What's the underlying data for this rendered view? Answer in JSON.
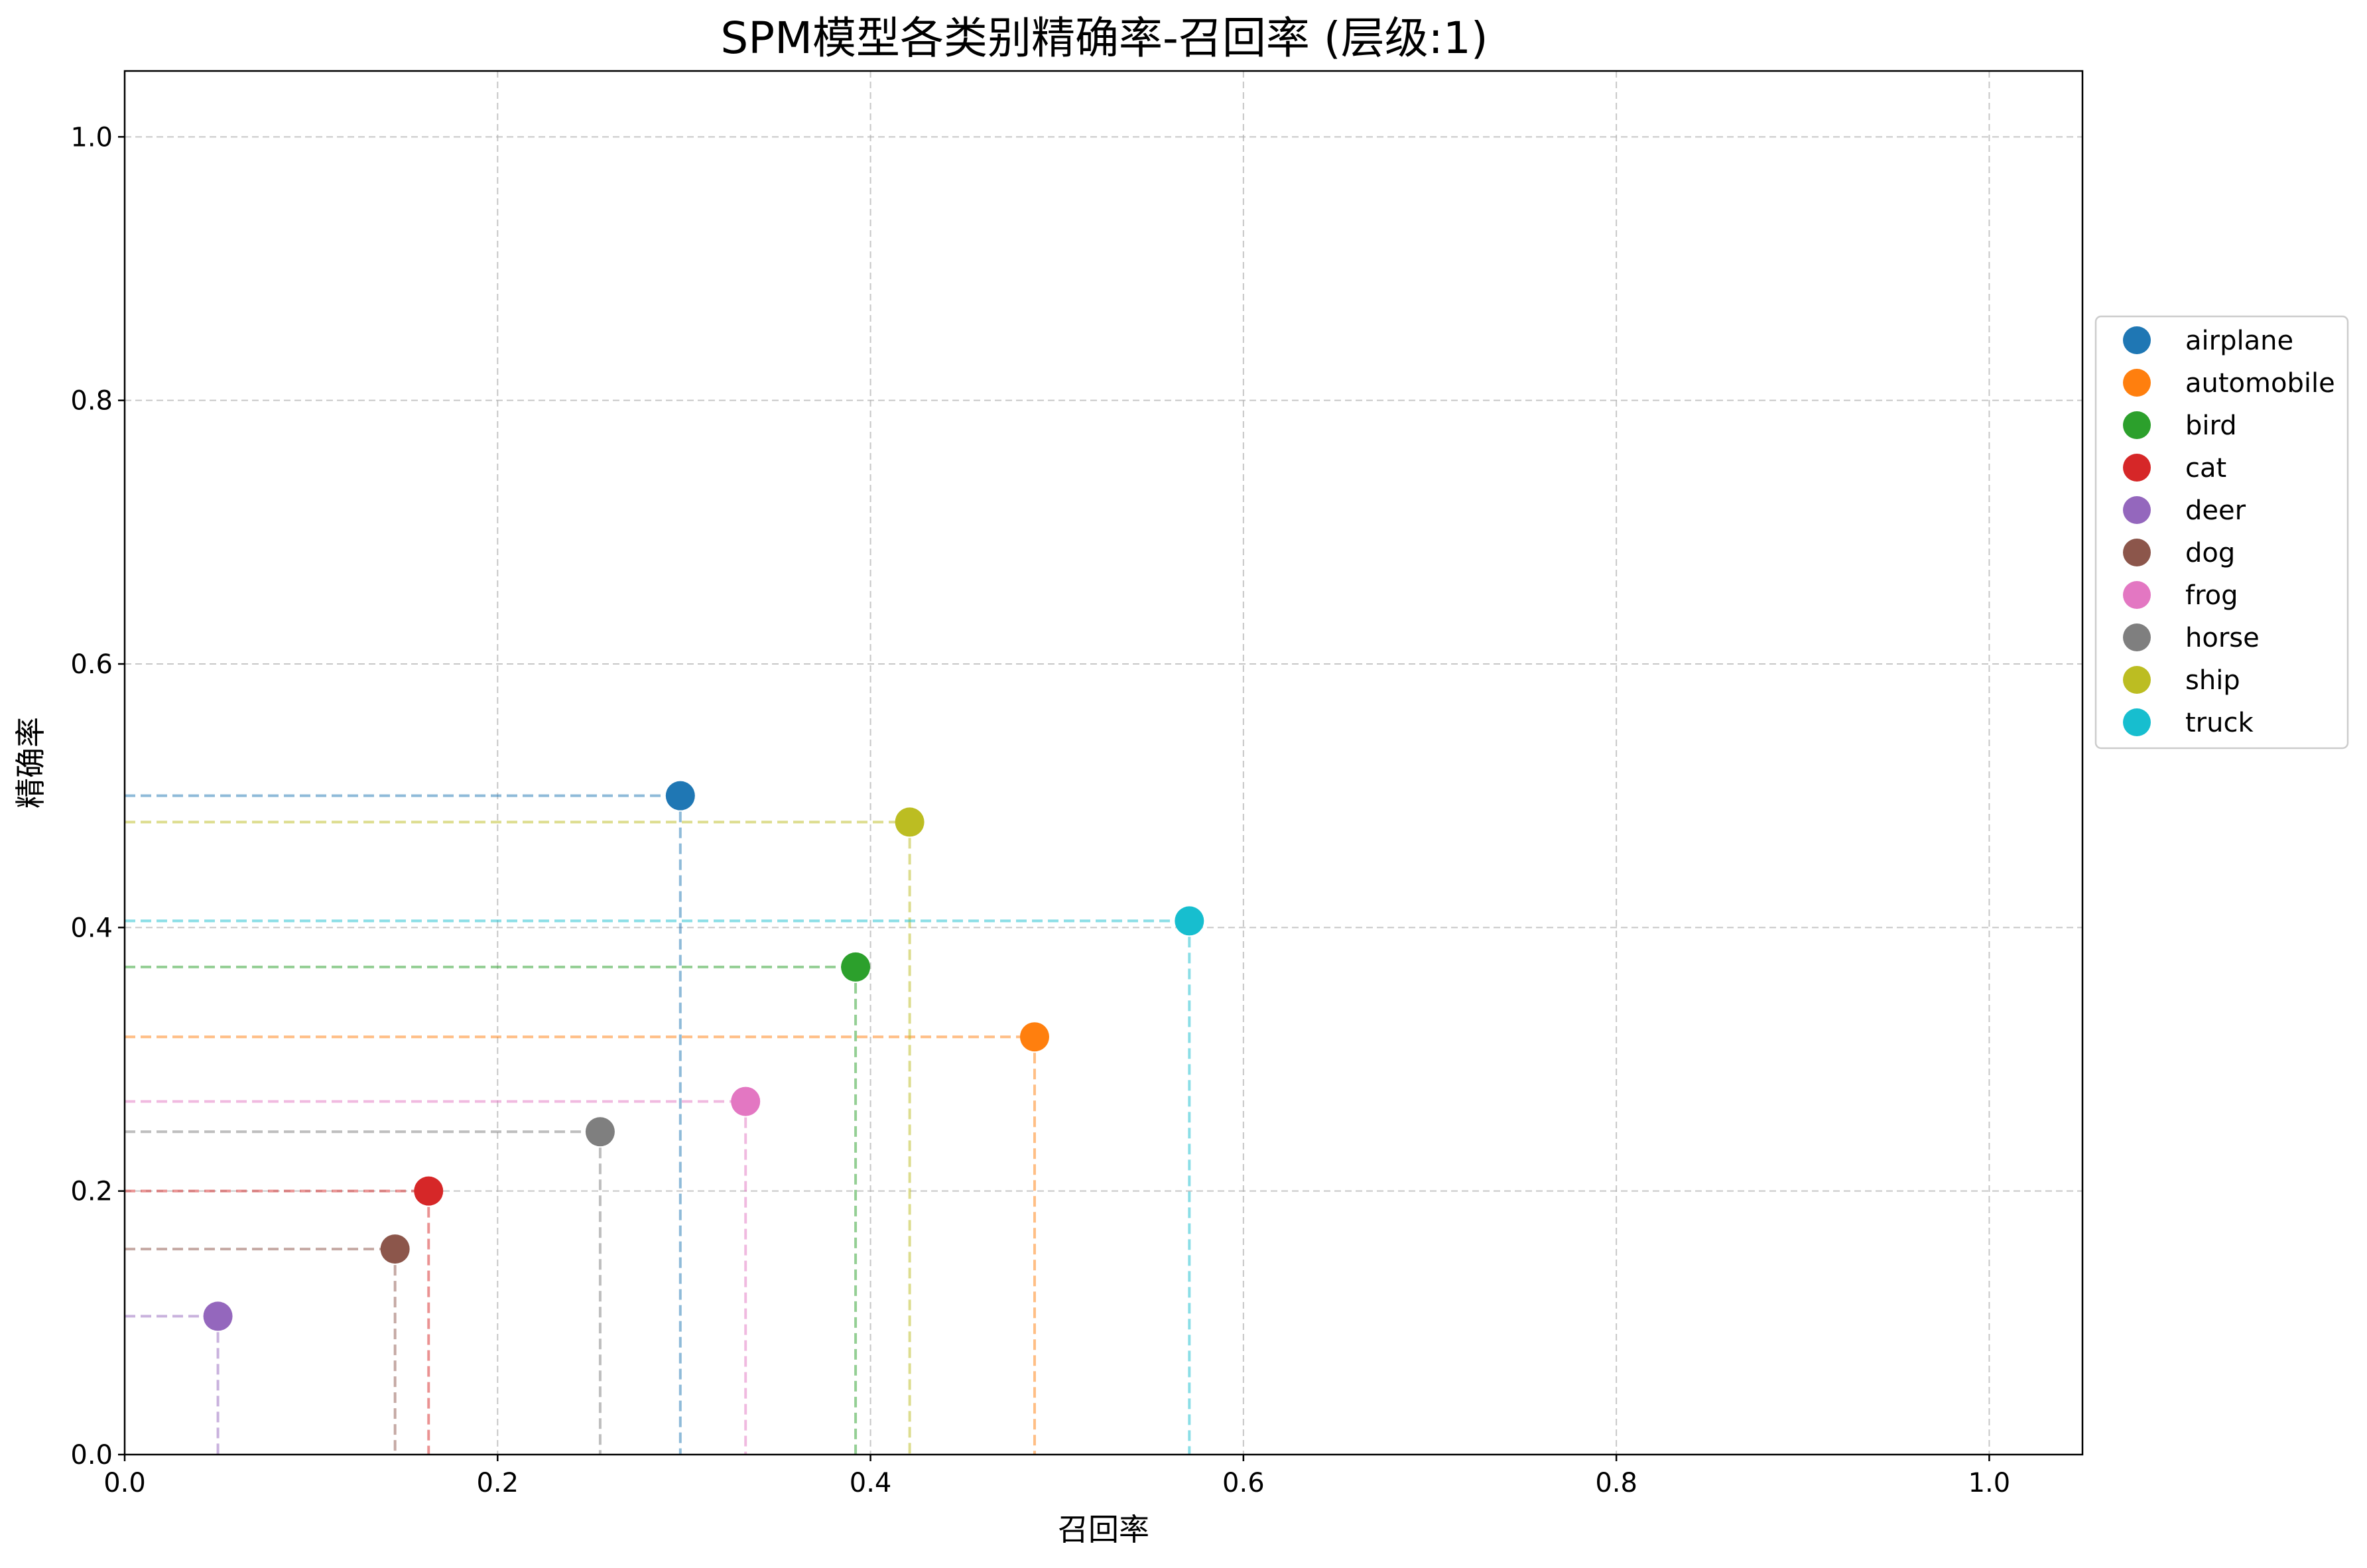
{
  "chart_data": {
    "type": "scatter",
    "title": "SPM模型各类别精确率-召回率 (层级:1)",
    "xlabel": "召回率",
    "ylabel": "精确率",
    "xlim": [
      0.0,
      1.05
    ],
    "ylim": [
      0.0,
      1.05
    ],
    "xticks": [
      "0.0",
      "0.2",
      "0.4",
      "0.6",
      "0.8",
      "1.0"
    ],
    "yticks": [
      "0.0",
      "0.2",
      "0.4",
      "0.6",
      "0.8",
      "1.0"
    ],
    "grid": true,
    "grid_style": "dashed",
    "legend_position": "right",
    "drop_lines": true,
    "series": [
      {
        "name": "airplane",
        "x": 0.298,
        "y": 0.5,
        "color": "#1f77b4"
      },
      {
        "name": "automobile",
        "x": 0.488,
        "y": 0.317,
        "color": "#ff7f0e"
      },
      {
        "name": "bird",
        "x": 0.392,
        "y": 0.37,
        "color": "#2ca02c"
      },
      {
        "name": "cat",
        "x": 0.163,
        "y": 0.2,
        "color": "#d62728"
      },
      {
        "name": "deer",
        "x": 0.05,
        "y": 0.105,
        "color": "#9467bd"
      },
      {
        "name": "dog",
        "x": 0.145,
        "y": 0.156,
        "color": "#8c564b"
      },
      {
        "name": "frog",
        "x": 0.333,
        "y": 0.268,
        "color": "#e377c2"
      },
      {
        "name": "horse",
        "x": 0.255,
        "y": 0.245,
        "color": "#7f7f7f"
      },
      {
        "name": "ship",
        "x": 0.421,
        "y": 0.48,
        "color": "#bcbd22"
      },
      {
        "name": "truck",
        "x": 0.571,
        "y": 0.405,
        "color": "#17becf"
      }
    ]
  }
}
